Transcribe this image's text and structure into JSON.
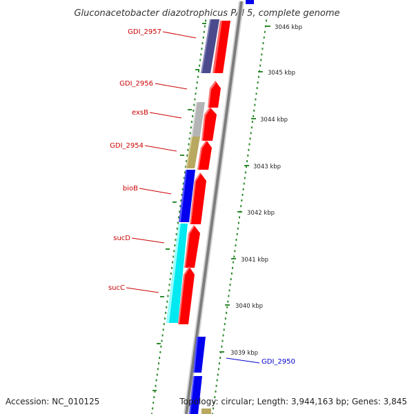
{
  "title": "Gluconacetobacter diazotrophicus PAl 5, complete genome",
  "accession": "Accession: NC_010125",
  "topology": "Topology: circular; Length: 3,944,163 bp; Genes: 3,845",
  "colors": {
    "backbone": "#9a9a9a",
    "axis_ticks": "#2f8a2f",
    "label_red": "#cc0000",
    "label_blue": "#0000cc"
  },
  "scale_labels": [
    "3046 kbp",
    "3045 kbp",
    "3044 kbp",
    "3043 kbp",
    "3042 kbp",
    "3041 kbp",
    "3040 kbp",
    "3039 kbp"
  ],
  "genes": [
    {
      "label": "GDI_2957",
      "color": "#cc0000",
      "fill": "#4a4a8c",
      "strand": "reverse"
    },
    {
      "label": "GDI_2956",
      "color": "#cc0000",
      "fill": "#ff0000",
      "strand": "forward"
    },
    {
      "label": "exsB",
      "color": "#cc0000",
      "fill": "#b4b4b4",
      "strand": "reverse"
    },
    {
      "label": "GDI_2954",
      "color": "#cc0000",
      "fill": "#b8a860",
      "strand": "reverse"
    },
    {
      "label": "bioB",
      "color": "#cc0000",
      "fill": "#0000ee",
      "strand": "reverse"
    },
    {
      "label": "sucD",
      "color": "#cc0000",
      "fill": "#00e8f0",
      "strand": "reverse"
    },
    {
      "label": "sucC",
      "color": "#cc0000",
      "fill": "#00e8f0",
      "strand": "reverse"
    },
    {
      "label": "GDI_2950",
      "color": "#0000cc",
      "fill": "#0000ee",
      "strand": "forward"
    }
  ]
}
